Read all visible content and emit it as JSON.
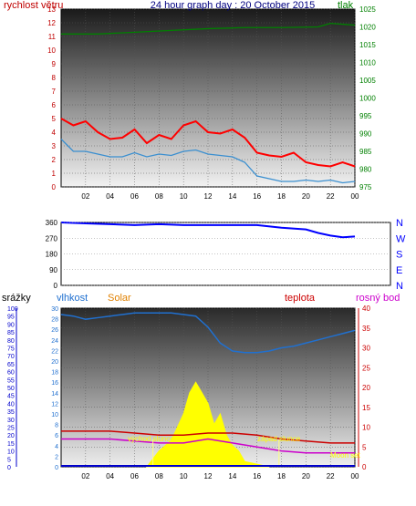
{
  "header": {
    "title": "24 hour graph day : 20 October 2015",
    "left_label": "rychlost větru",
    "right_label": "tlak"
  },
  "bottom_header": {
    "srazky": "srážky",
    "vlhkost": "vlhkost",
    "solar": "Solar",
    "teplota": "teplota",
    "rosny_bod": "rosný bod"
  },
  "annotations": {
    "sunrise": "východ slunce",
    "sunset": "západ slunce",
    "moon": "Moon set"
  },
  "colors": {
    "wind": "#ff0000",
    "wind_avg": "#3a8fd0",
    "pressure": "#008000",
    "direction": "#0000ff",
    "humidity": "#2070d0",
    "temperature": "#cc0000",
    "dewpoint": "#cc00cc",
    "solar": "#ffff00",
    "rain": "#0000cc",
    "title": "#000080",
    "wind_label": "#c00000",
    "rosny": "#cc00cc",
    "solar_label": "#e08000"
  },
  "chart_data": [
    {
      "type": "line",
      "name": "wind",
      "x_tick_labels": [
        "02",
        "04",
        "06",
        "08",
        "10",
        "12",
        "14",
        "16",
        "18",
        "20",
        "22",
        "00"
      ],
      "left_axis": {
        "label": "rychlost větru",
        "ylim": [
          0,
          13
        ],
        "ticks": [
          "0",
          "1",
          "2",
          "3",
          "4",
          "5",
          "6",
          "7",
          "8",
          "9",
          "10",
          "11",
          "12",
          "13"
        ]
      },
      "right_axis": {
        "label": "tlak",
        "ylim": [
          975,
          1025
        ],
        "ticks": [
          "975",
          "980",
          "985",
          "990",
          "995",
          "1000",
          "1005",
          "1010",
          "1015",
          "1020",
          "1025"
        ]
      },
      "series": [
        {
          "role": "gust",
          "x": [
            0,
            1,
            2,
            3,
            4,
            5,
            6,
            7,
            8,
            9,
            10,
            11,
            12,
            13,
            14,
            15,
            16,
            17,
            18,
            19,
            20,
            21,
            22,
            23,
            24
          ],
          "values": [
            5,
            4.5,
            4.8,
            4,
            3.5,
            3.6,
            4.2,
            3.2,
            3.8,
            3.5,
            4.5,
            4.8,
            4,
            3.9,
            4.2,
            3.6,
            2.5,
            2.3,
            2.2,
            2.5,
            1.8,
            1.6,
            1.5,
            1.8,
            1.5
          ]
        },
        {
          "role": "average",
          "x": [
            0,
            1,
            2,
            3,
            4,
            5,
            6,
            7,
            8,
            9,
            10,
            11,
            12,
            13,
            14,
            15,
            16,
            17,
            18,
            19,
            20,
            21,
            22,
            23,
            24
          ],
          "values": [
            3.5,
            2.6,
            2.6,
            2.4,
            2.2,
            2.2,
            2.5,
            2.2,
            2.4,
            2.3,
            2.6,
            2.7,
            2.4,
            2.3,
            2.2,
            1.8,
            0.8,
            0.6,
            0.4,
            0.4,
            0.5,
            0.4,
            0.5,
            0.3,
            0.4
          ]
        },
        {
          "role": "pressure",
          "x": [
            0,
            3,
            6,
            9,
            12,
            15,
            18,
            21,
            22,
            24
          ],
          "values": [
            1018,
            1018,
            1018.5,
            1019,
            1019.5,
            1019.8,
            1019.8,
            1020,
            1021,
            1020.5
          ]
        }
      ]
    },
    {
      "type": "line",
      "name": "wind-direction",
      "x_tick_labels": [
        "02",
        "04",
        "06",
        "08",
        "10",
        "12",
        "14",
        "16",
        "18",
        "20",
        "22",
        "00"
      ],
      "ylim": [
        0,
        360
      ],
      "left_ticks": [
        "0",
        "90",
        "180",
        "270",
        "360"
      ],
      "right_ticks": [
        "N",
        "W",
        "S",
        "E",
        "N"
      ],
      "series": [
        {
          "x": [
            0,
            2,
            4,
            6,
            8,
            10,
            12,
            14,
            16,
            18,
            20,
            21,
            22,
            23,
            24
          ],
          "values": [
            360,
            355,
            350,
            345,
            350,
            345,
            345,
            345,
            345,
            330,
            320,
            300,
            285,
            275,
            280
          ]
        }
      ]
    },
    {
      "type": "line",
      "name": "humidity-temperature-solar",
      "x_tick_labels": [
        "02",
        "04",
        "06",
        "08",
        "10",
        "12",
        "14",
        "16",
        "18",
        "20",
        "22",
        "00"
      ],
      "rain_axis": {
        "label": "srážky",
        "ylim": [
          0,
          100
        ],
        "ticks": [
          "0",
          "5",
          "10",
          "15",
          "20",
          "25",
          "30",
          "35",
          "40",
          "45",
          "50",
          "55",
          "60",
          "65",
          "70",
          "75",
          "80",
          "85",
          "90",
          "95",
          "100"
        ]
      },
      "humidity_axis": {
        "label": "vlhkost",
        "ylim": [
          0,
          30
        ],
        "ticks": [
          "0",
          "2",
          "4",
          "6",
          "8",
          "10",
          "12",
          "14",
          "16",
          "18",
          "20",
          "22",
          "24",
          "26",
          "28",
          "30"
        ]
      },
      "temperature_axis": {
        "label": "teplota",
        "ylim": [
          0,
          40
        ],
        "ticks": [
          "0",
          "5",
          "10",
          "15",
          "20",
          "25",
          "30",
          "35",
          "40"
        ]
      },
      "series": [
        {
          "name": "vlhkost",
          "x": [
            0,
            1,
            2,
            3,
            4,
            5,
            6,
            7,
            8,
            9,
            10,
            11,
            12,
            13,
            14,
            15,
            16,
            17,
            18,
            19,
            20,
            21,
            22,
            23,
            24
          ],
          "values": [
            96,
            95,
            93,
            94,
            95,
            96,
            97,
            97,
            97,
            97,
            96,
            95,
            88,
            78,
            73,
            72,
            72,
            73,
            75,
            76,
            78,
            80,
            82,
            84,
            86
          ]
        },
        {
          "name": "teplota",
          "x": [
            0,
            2,
            4,
            6,
            8,
            10,
            12,
            14,
            16,
            18,
            20,
            22,
            24
          ],
          "values": [
            9,
            9,
            9,
            8.5,
            8,
            8,
            8.5,
            8.5,
            8,
            7,
            6.5,
            6,
            6
          ]
        },
        {
          "name": "rosný bod",
          "x": [
            0,
            2,
            4,
            6,
            8,
            10,
            12,
            14,
            16,
            18,
            20,
            22,
            24
          ],
          "values": [
            7,
            7,
            7,
            6.5,
            6,
            6,
            7,
            6,
            5,
            4,
            3.5,
            3.5,
            3.5
          ]
        },
        {
          "name": "Solar",
          "x": [
            7,
            8,
            9,
            10,
            10.5,
            11,
            11.5,
            12,
            12.5,
            13,
            13.5,
            14,
            14.5,
            15,
            16,
            17
          ],
          "values": [
            0,
            3,
            5,
            10,
            14,
            16,
            14,
            12,
            8,
            10,
            6,
            4,
            3,
            1,
            0.5,
            0
          ]
        }
      ],
      "sunrise_x": 7.5,
      "sunset_x": 17.8
    }
  ]
}
